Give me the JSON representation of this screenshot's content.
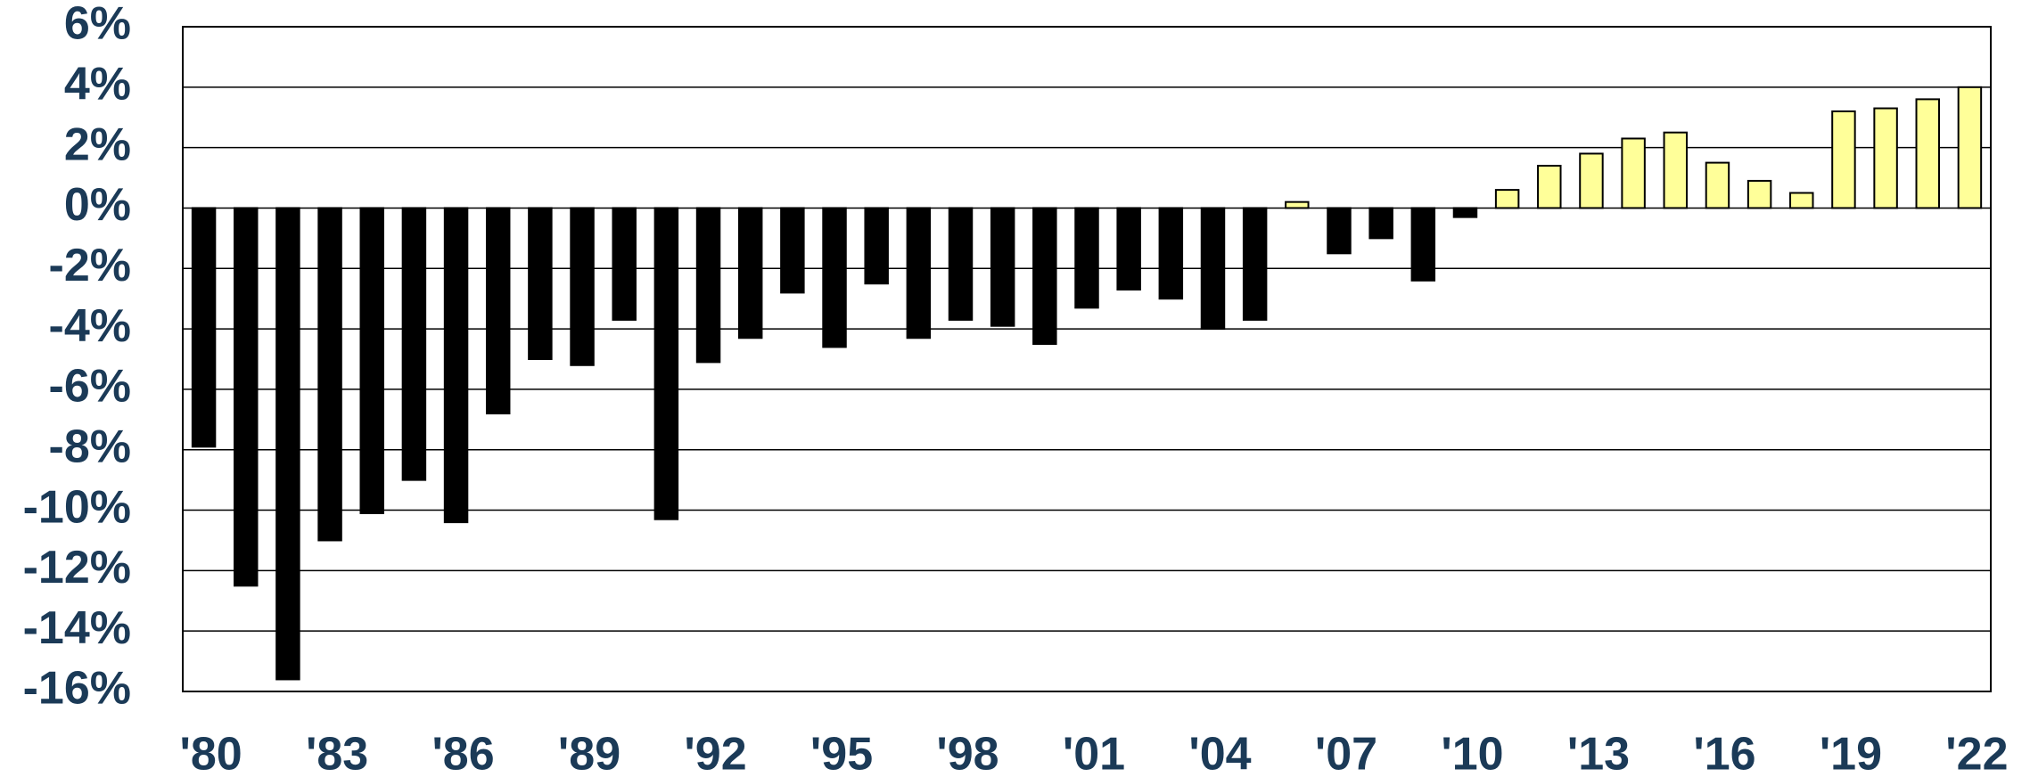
{
  "chart_data": {
    "type": "bar",
    "categories": [
      "'80",
      null,
      null,
      "'83",
      null,
      null,
      "'86",
      null,
      null,
      "'89",
      null,
      null,
      "'92",
      null,
      null,
      "'95",
      null,
      null,
      "'98",
      null,
      null,
      "'01",
      null,
      null,
      "'04",
      null,
      null,
      "'07",
      null,
      null,
      "'10",
      null,
      null,
      "'13",
      null,
      null,
      "'16",
      null,
      null,
      "'19",
      null,
      null,
      "'22"
    ],
    "values": [
      -7.9,
      -12.5,
      -15.6,
      -11.0,
      -10.1,
      -9.0,
      -10.4,
      -6.8,
      -5.0,
      -5.2,
      -3.7,
      -10.3,
      -5.1,
      -4.3,
      -2.8,
      -4.6,
      -2.5,
      -4.3,
      -3.7,
      -3.9,
      -4.5,
      -3.3,
      -2.7,
      -3.0,
      -4.0,
      -3.7,
      0.2,
      -1.5,
      -1.0,
      -2.4,
      -0.3,
      0.6,
      1.4,
      1.8,
      2.3,
      2.5,
      1.5,
      0.9,
      0.5,
      3.2,
      3.3,
      3.6,
      4.0
    ],
    "colors": {
      "negative": "#000000",
      "positive": "#ffff99"
    },
    "ylim": [
      -16,
      6
    ],
    "yticks": [
      {
        "value": -16,
        "label": "-16%"
      },
      {
        "value": -14,
        "label": "-14%"
      },
      {
        "value": -12,
        "label": "-12%"
      },
      {
        "value": -10,
        "label": "-10%"
      },
      {
        "value": -8,
        "label": "-8%"
      },
      {
        "value": -6,
        "label": "-6%"
      },
      {
        "value": -4,
        "label": "-4%"
      },
      {
        "value": -2,
        "label": "-2%"
      },
      {
        "value": 0,
        "label": "0%"
      },
      {
        "value": 2,
        "label": "2%"
      },
      {
        "value": 4,
        "label": "4%"
      },
      {
        "value": 6,
        "label": "6%"
      }
    ],
    "grid": true
  }
}
